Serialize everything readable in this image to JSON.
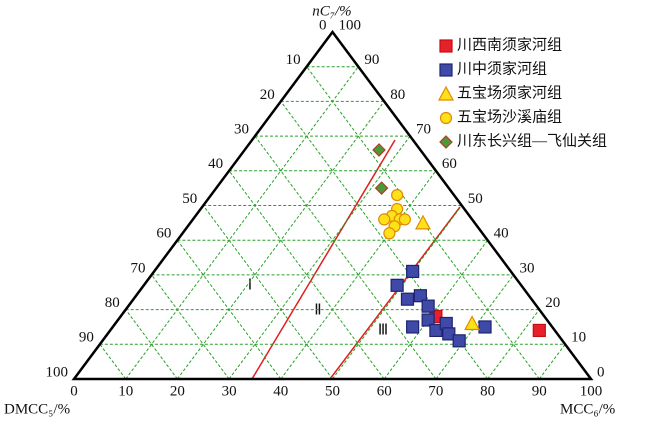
{
  "chart_data": {
    "type": "ternary",
    "axes": {
      "top": {
        "label": "nC₇/%",
        "ticks": [
          0,
          10,
          20,
          30,
          40,
          50,
          60,
          70,
          80,
          90,
          100
        ]
      },
      "left": {
        "label": "DMCC₅/%",
        "ticks": [
          0,
          10,
          20,
          30,
          40,
          50,
          60,
          70,
          80,
          90,
          100
        ]
      },
      "right": {
        "label": "MCC₆/%",
        "ticks": [
          0,
          10,
          20,
          30,
          40,
          50,
          60,
          70,
          80,
          90,
          100
        ]
      }
    },
    "grid": true,
    "region_labels": [
      "Ⅰ",
      "Ⅱ",
      "Ⅲ"
    ],
    "series": [
      {
        "name": "川西南须家河组",
        "marker": "square",
        "color": "#e8202a",
        "stroke": "#c01010",
        "x": [
          83,
          61
        ],
        "values": [
          14,
          18
        ]
      },
      {
        "name": "川中须家河组",
        "marker": "square",
        "color": "#3f4aa8",
        "stroke": "#1e2470",
        "x": [
          50,
          49,
          53,
          55,
          58,
          58,
          60,
          63,
          64,
          66,
          69,
          72
        ],
        "values": [
          31,
          27,
          23,
          24,
          21,
          15,
          17,
          14,
          16,
          13,
          11,
          15
        ]
      },
      {
        "name": "五宝场须家河组",
        "marker": "triangle",
        "color": "#ffe11a",
        "stroke": "#e08a00",
        "x": [
          45,
          69
        ],
        "values": [
          45,
          16
        ]
      },
      {
        "name": "五宝场沙溪庙组",
        "marker": "circle",
        "color": "#ffe11a",
        "stroke": "#e08a00",
        "x": [
          36,
          38,
          38,
          40,
          37,
          40,
          40,
          41
        ],
        "values": [
          53,
          49,
          47,
          46,
          46,
          44,
          42,
          46
        ]
      },
      {
        "name": "川东长兴组—飞仙关组",
        "marker": "diamond",
        "color": "#4a9a3a",
        "stroke": "#b04020",
        "x": [
          26,
          32
        ],
        "values": [
          66,
          55
        ]
      }
    ]
  }
}
